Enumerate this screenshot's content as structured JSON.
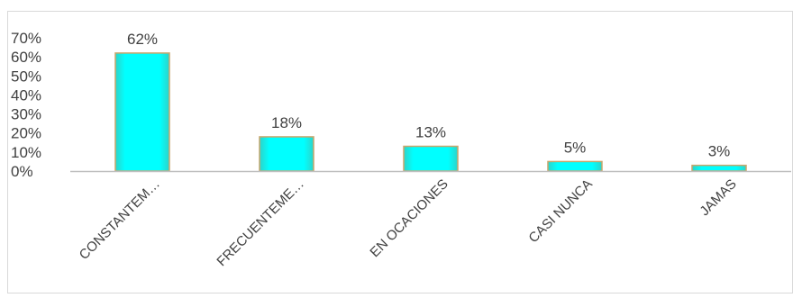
{
  "chart_data": {
    "type": "bar",
    "categories": [
      "CONSTANTEM…",
      "FRECUENTEME…",
      "EN OCACIONES",
      "CASI NUNCA",
      "JAMAS"
    ],
    "values": [
      62,
      18,
      13,
      5,
      3
    ],
    "data_labels": [
      "62%",
      "18%",
      "13%",
      "5%",
      "3%"
    ],
    "y_ticks": [
      "0%",
      "10%",
      "20%",
      "30%",
      "40%",
      "50%",
      "60%",
      "70%"
    ],
    "ylim": [
      0,
      70
    ],
    "title": "",
    "xlabel": "",
    "ylabel": "",
    "grid": false,
    "legend": "none",
    "bar_fill": "#00ffff",
    "bar_edge": "#c9a66b",
    "axis_color": "#bfbfbf"
  }
}
